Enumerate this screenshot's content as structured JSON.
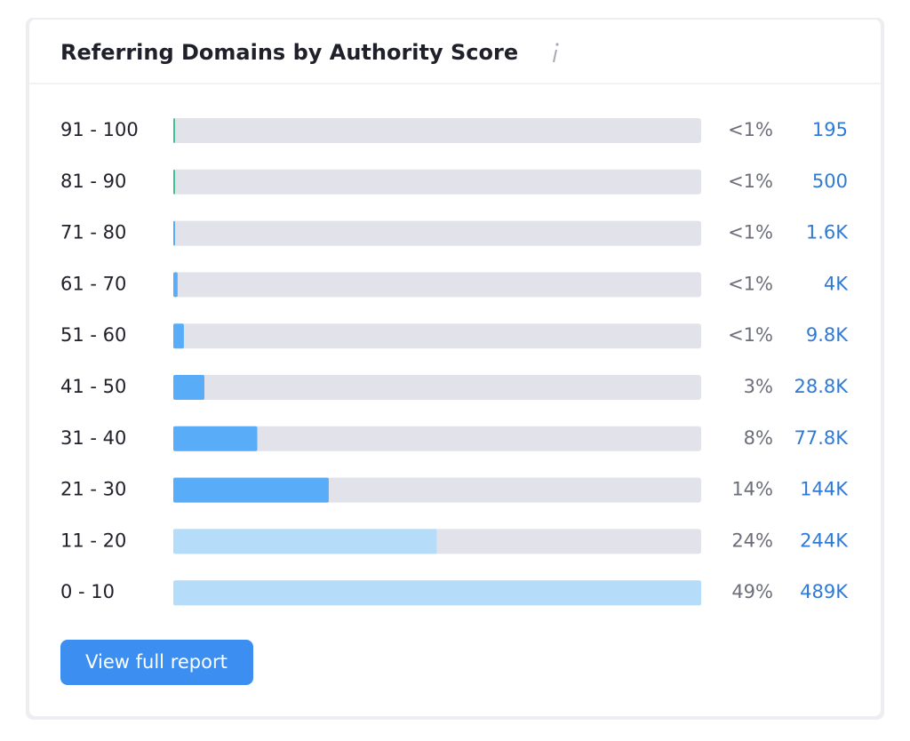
{
  "chart_data": {
    "type": "hbar",
    "title": "Referring Domains by Authority Score",
    "categories": [
      "91 - 100",
      "81 - 90",
      "71 - 80",
      "61 - 70",
      "51 - 60",
      "41 - 50",
      "31 - 40",
      "21 - 30",
      "11 - 20",
      "0 - 10"
    ],
    "values": [
      195,
      500,
      1600,
      4000,
      9800,
      28800,
      77800,
      144000,
      244000,
      489000
    ],
    "value_labels": [
      "195",
      "500",
      "1.6K",
      "4K",
      "9.8K",
      "28.8K",
      "77.8K",
      "144K",
      "244K",
      "489K"
    ],
    "share_labels": [
      "<1%",
      "<1%",
      "<1%",
      "<1%",
      "<1%",
      "3%",
      "8%",
      "14%",
      "24%",
      "49%"
    ],
    "colors": [
      "#3fc193",
      "#3fc193",
      "#59acf7",
      "#59acf7",
      "#59acf7",
      "#59acf7",
      "#59acf7",
      "#59acf7",
      "#b5dcf9",
      "#b5dcf9"
    ],
    "track_color": "#e1e2ea",
    "xlim": [
      0,
      489000
    ],
    "button": "View full report"
  }
}
